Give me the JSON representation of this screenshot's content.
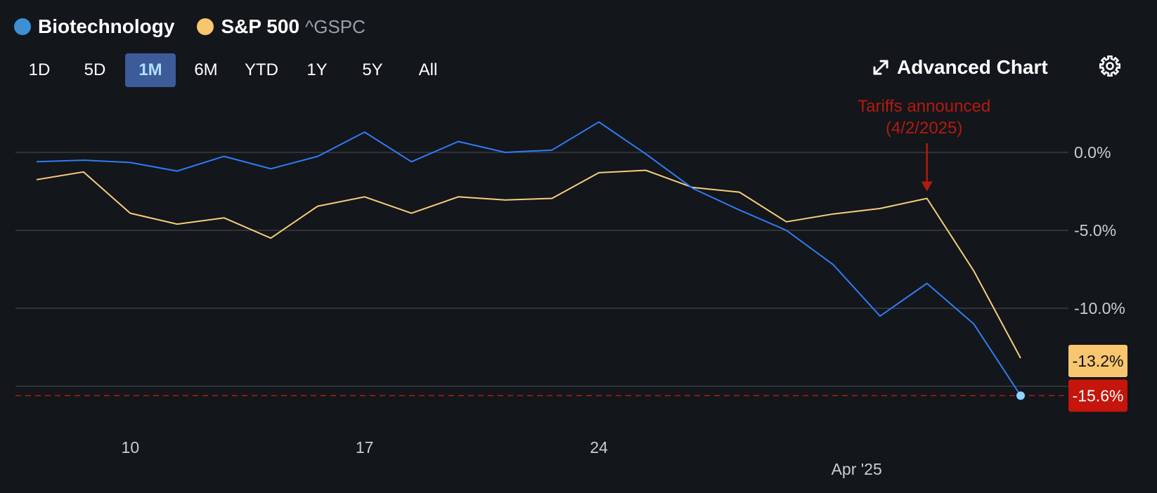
{
  "legend": {
    "series1_name": "Biotechnology",
    "series2_name": "S&P 500",
    "series2_ticker": "^GSPC"
  },
  "timeframes": [
    "1D",
    "5D",
    "1M",
    "6M",
    "YTD",
    "1Y",
    "5Y",
    "All"
  ],
  "active_timeframe": "1M",
  "toolbar": {
    "advanced_chart_label": "Advanced Chart",
    "advanced_icon": "expand-arrows-icon",
    "settings_icon": "gear-icon"
  },
  "colors": {
    "background": "#13161b",
    "biotech_line": "#2f7cf6",
    "biotech_dot": "#3d8fd6",
    "sp500_line": "#f7cd7b",
    "sp500_dot": "#f7c66f",
    "grid": "#3a3d42",
    "annotation": "#b31a10",
    "negative_badge": "#c5150c",
    "sp500_badge": "#f7c66f",
    "end_dot": "#8fd3ff"
  },
  "chart_data": {
    "type": "line",
    "title": "",
    "xlabel": "",
    "ylabel": "",
    "ylim": [
      -17.3,
      2.5
    ],
    "y_ticks": [
      0,
      -5,
      -10
    ],
    "y_tick_labels": [
      "0.0%",
      "-5.0%",
      "-10.0%"
    ],
    "x_tick_labels": [
      {
        "label": "10",
        "index": 2,
        "row": 1
      },
      {
        "label": "17",
        "index": 7,
        "row": 1
      },
      {
        "label": "24",
        "index": 12,
        "row": 1
      },
      {
        "label": "Apr '25",
        "index": 17.5,
        "row": 2
      }
    ],
    "series": [
      {
        "name": "Biotechnology",
        "values": [
          -0.6,
          -0.5,
          -0.65,
          -1.2,
          -0.25,
          -1.05,
          -0.25,
          1.3,
          -0.6,
          0.7,
          0.0,
          0.15,
          1.95,
          -0.1,
          -2.3,
          -3.7,
          -5.0,
          -7.2,
          -10.5,
          -8.4,
          -11.0,
          -15.6
        ]
      },
      {
        "name": "S&P 500",
        "values": [
          -1.75,
          -1.25,
          -3.9,
          -4.6,
          -4.2,
          -5.5,
          -3.45,
          -2.85,
          -3.9,
          -2.85,
          -3.05,
          -2.95,
          -1.3,
          -1.15,
          -2.25,
          -2.55,
          -4.45,
          -3.95,
          -3.6,
          -2.95,
          -7.6,
          -13.2
        ]
      }
    ],
    "reference_line": {
      "value": -15.6,
      "style": "dashed"
    },
    "end_labels": [
      {
        "series": "S&P 500",
        "text": "-13.2%"
      },
      {
        "series": "Biotechnology",
        "text": "-15.6%"
      }
    ],
    "annotations": [
      {
        "line1": "Tariffs announced",
        "line2": "(4/2/2025)",
        "index": 19,
        "target_series": "S&P 500"
      }
    ]
  }
}
